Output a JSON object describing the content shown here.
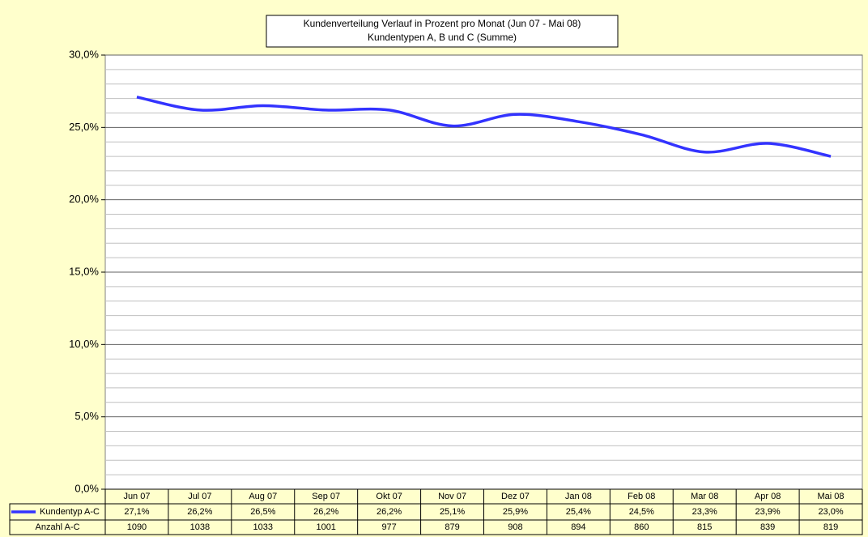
{
  "chart_data": {
    "type": "line",
    "title": [
      "Kundenverteilung Verlauf in Prozent pro Monat (Jun 07 - Mai 08)",
      "Kundentypen A, B und C (Summe)"
    ],
    "categories": [
      "Jun 07",
      "Jul 07",
      "Aug 07",
      "Sep 07",
      "Okt 07",
      "Nov 07",
      "Dez 07",
      "Jan 08",
      "Feb 08",
      "Mar 08",
      "Apr 08",
      "Mai 08"
    ],
    "series": [
      {
        "name": "Kundentyp A-C",
        "color": "#3333ff",
        "values": [
          27.1,
          26.2,
          26.5,
          26.2,
          26.2,
          25.1,
          25.9,
          25.4,
          24.5,
          23.3,
          23.9,
          23.0
        ],
        "value_labels": [
          "27,1%",
          "26,2%",
          "26,5%",
          "26,2%",
          "26,2%",
          "25,1%",
          "25,9%",
          "25,4%",
          "24,5%",
          "23,3%",
          "23,9%",
          "23,0%"
        ]
      }
    ],
    "table_rows": [
      {
        "name": "Anzahl A-C",
        "values": [
          1090,
          1038,
          1033,
          1001,
          977,
          879,
          908,
          894,
          860,
          815,
          839,
          819
        ]
      }
    ],
    "ylim": [
      0,
      30
    ],
    "yticks": [
      {
        "value": 0,
        "label": "0,0%"
      },
      {
        "value": 5,
        "label": "5,0%"
      },
      {
        "value": 10,
        "label": "10,0%"
      },
      {
        "value": 15,
        "label": "15,0%"
      },
      {
        "value": 20,
        "label": "20,0%"
      },
      {
        "value": 25,
        "label": "25,0%"
      },
      {
        "value": 30,
        "label": "30,0%"
      }
    ],
    "minor_yticks": [
      1,
      2,
      3,
      4,
      6,
      7,
      8,
      9,
      11,
      12,
      13,
      14,
      16,
      17,
      18,
      19,
      21,
      22,
      23,
      24,
      26,
      27,
      28,
      29
    ],
    "grid": true
  }
}
